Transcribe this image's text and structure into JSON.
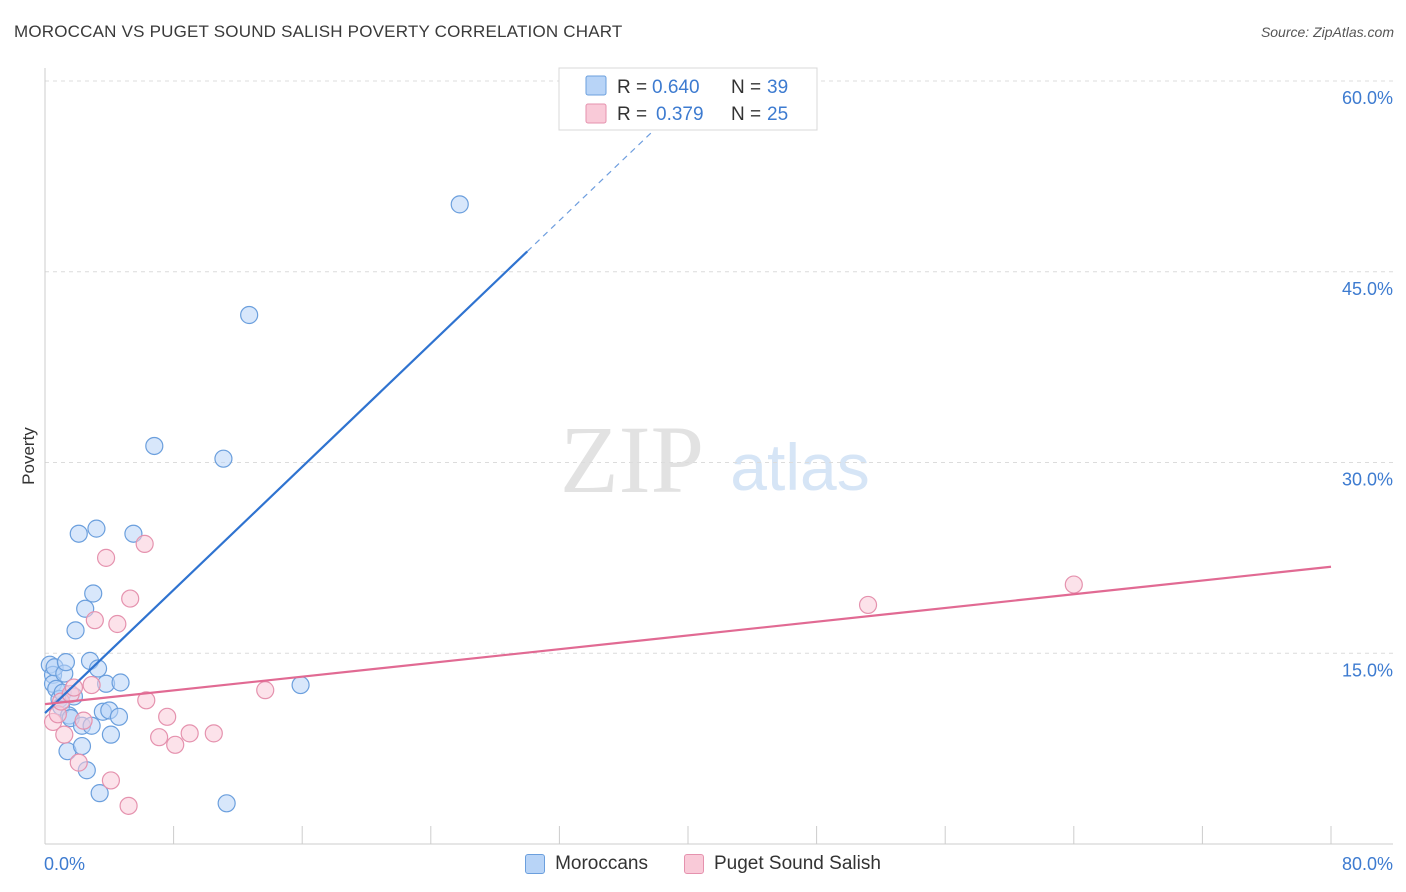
{
  "chart_data": {
    "type": "scatter",
    "title": "MOROCCAN VS PUGET SOUND SALISH POVERTY CORRELATION CHART",
    "source": "Source: ZipAtlas.com",
    "ylabel": "Poverty",
    "xlabel": "",
    "xlim": [
      0,
      80
    ],
    "ylim": [
      0,
      60
    ],
    "x_tick_labels": [
      "0.0%",
      "80.0%"
    ],
    "y_ticks": [
      15,
      30,
      45,
      60
    ],
    "y_tick_labels": [
      "15.0%",
      "30.0%",
      "45.0%",
      "60.0%"
    ],
    "watermark": {
      "zip": "ZIP",
      "atlas": "atlas"
    },
    "grid": "dashed horizontal",
    "stats_legend": [
      {
        "r_label": "R =",
        "r_value": "0.640",
        "n_label": "N =",
        "n_value": "39"
      },
      {
        "r_label": "R =",
        "r_value": "0.379",
        "n_label": "N =",
        "n_value": "25"
      }
    ],
    "series": [
      {
        "name": "Moroccans",
        "color": "#6b9fdd",
        "fill": "#b8d4f7",
        "trend_color": "#2f73d0",
        "trend": {
          "x0": 0,
          "y0": 10.3,
          "x1": 30,
          "y1": 46.6,
          "dash_to_x": 38
        },
        "points": [
          [
            0.3,
            14.1
          ],
          [
            0.5,
            13.3
          ],
          [
            0.5,
            12.6
          ],
          [
            0.6,
            13.9
          ],
          [
            0.7,
            12.2
          ],
          [
            0.9,
            11.4
          ],
          [
            1.0,
            10.8
          ],
          [
            1.1,
            11.9
          ],
          [
            1.2,
            13.4
          ],
          [
            1.3,
            14.3
          ],
          [
            1.4,
            7.3
          ],
          [
            1.5,
            10.1
          ],
          [
            1.6,
            9.9
          ],
          [
            1.8,
            11.6
          ],
          [
            1.9,
            16.8
          ],
          [
            2.1,
            24.4
          ],
          [
            2.3,
            9.3
          ],
          [
            2.3,
            7.7
          ],
          [
            2.5,
            18.5
          ],
          [
            2.6,
            5.8
          ],
          [
            2.8,
            14.4
          ],
          [
            2.9,
            9.3
          ],
          [
            3.0,
            19.7
          ],
          [
            3.2,
            24.8
          ],
          [
            3.3,
            13.8
          ],
          [
            3.4,
            4.0
          ],
          [
            3.6,
            10.4
          ],
          [
            3.8,
            12.6
          ],
          [
            4.0,
            10.5
          ],
          [
            4.1,
            8.6
          ],
          [
            4.6,
            10.0
          ],
          [
            4.7,
            12.7
          ],
          [
            5.5,
            24.4
          ],
          [
            6.8,
            31.3
          ],
          [
            11.1,
            30.3
          ],
          [
            11.3,
            3.2
          ],
          [
            12.7,
            41.6
          ],
          [
            15.9,
            12.5
          ],
          [
            25.8,
            50.3
          ]
        ]
      },
      {
        "name": "Puget Sound Salish",
        "color": "#e592ae",
        "fill": "#f9cad8",
        "trend_color": "#e16a93",
        "trend": {
          "x0": 0,
          "y0": 11.0,
          "x1": 80,
          "y1": 21.8
        },
        "points": [
          [
            0.5,
            9.6
          ],
          [
            0.8,
            10.2
          ],
          [
            1.0,
            11.2
          ],
          [
            1.2,
            8.6
          ],
          [
            1.6,
            11.8
          ],
          [
            1.8,
            12.3
          ],
          [
            2.1,
            6.4
          ],
          [
            2.4,
            9.7
          ],
          [
            2.9,
            12.5
          ],
          [
            3.1,
            17.6
          ],
          [
            3.8,
            22.5
          ],
          [
            4.1,
            5.0
          ],
          [
            4.5,
            17.3
          ],
          [
            5.2,
            3.0
          ],
          [
            5.3,
            19.3
          ],
          [
            6.2,
            23.6
          ],
          [
            6.3,
            11.3
          ],
          [
            7.1,
            8.4
          ],
          [
            7.6,
            10.0
          ],
          [
            8.1,
            7.8
          ],
          [
            9.0,
            8.7
          ],
          [
            10.5,
            8.7
          ],
          [
            13.7,
            12.1
          ],
          [
            51.2,
            18.8
          ],
          [
            64.0,
            20.4
          ]
        ]
      }
    ]
  }
}
